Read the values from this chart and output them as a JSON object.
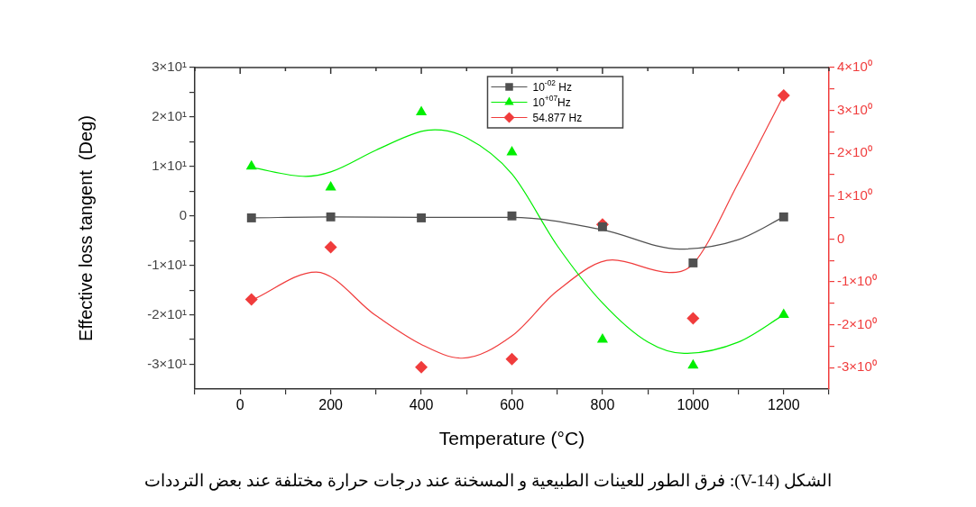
{
  "chart_data": {
    "type": "scatter",
    "xlabel": "Temperature (°C)",
    "ylabel": "Effective loss tangent  (Deg)",
    "annotations": [
      "الشكل (V-14): فرق الطور للعينات الطبيعية و المسخنة عند درجات حرارة مختلفة عند بعض الترددات"
    ],
    "xlim": [
      -100,
      1300
    ],
    "xticks": [
      {
        "value": -100,
        "label": null
      },
      0,
      {
        "value": 100,
        "label": null
      },
      200,
      {
        "value": 300,
        "label": null
      },
      400,
      {
        "value": 500,
        "label": null
      },
      600,
      {
        "value": 700,
        "label": null
      },
      800,
      {
        "value": 900,
        "label": null
      },
      1000,
      {
        "value": 1100,
        "label": null
      },
      1200,
      {
        "value": 1300,
        "label": null
      }
    ],
    "ylim": [
      -35,
      30
    ],
    "yticks": [
      {
        "value": -30,
        "label": "-3×10¹"
      },
      {
        "value": -25,
        "label": null
      },
      {
        "value": -20,
        "label": "-2×10¹"
      },
      {
        "value": -15,
        "label": null
      },
      {
        "value": -10,
        "label": "-1×10¹"
      },
      {
        "value": -5,
        "label": null
      },
      0,
      {
        "value": 5,
        "label": null
      },
      {
        "value": 10,
        "label": "1×10¹"
      },
      {
        "value": 15,
        "label": null
      },
      {
        "value": 20,
        "label": "2×10¹"
      },
      {
        "value": 25,
        "label": null
      },
      {
        "value": 30,
        "label": "3×10¹"
      }
    ],
    "y2lim": [
      -3.5,
      4
    ],
    "y2ticks": [
      {
        "value": -3,
        "label": "-3×10⁰"
      },
      {
        "value": -2.5,
        "label": null
      },
      {
        "value": -2,
        "label": "-2×10⁰"
      },
      {
        "value": -1.5,
        "label": null
      },
      {
        "value": -1,
        "label": "-1×10⁰"
      },
      {
        "value": -0.5,
        "label": null
      },
      0,
      {
        "value": 0.5,
        "label": null
      },
      {
        "value": 1,
        "label": "1×10⁰"
      },
      {
        "value": 1.5,
        "label": null
      },
      {
        "value": 2,
        "label": "2×10⁰"
      },
      {
        "value": 2.5,
        "label": null
      },
      {
        "value": 3,
        "label": "3×10⁰"
      },
      {
        "value": 3.5,
        "label": null
      },
      {
        "value": 4,
        "label": "4×10⁰"
      }
    ],
    "legend": "top",
    "series": [
      {
        "name": "10$^{-02}$ Hz",
        "marker": "square",
        "color": "#505050",
        "x": [
          25,
          200,
          400,
          600,
          800,
          1000,
          1200
        ],
        "values": [
          -0.4,
          -0.2,
          -0.4,
          0,
          -2.2,
          -9.5,
          -0.2
        ]
      },
      {
        "name": "10$^{+07}$Hz",
        "marker": "triangle",
        "color": "#00ee00",
        "x": [
          25,
          200,
          400,
          600,
          800,
          1000,
          1200
        ],
        "values": [
          10,
          5.8,
          21,
          12.9,
          -25,
          -30.2,
          -20
        ]
      },
      {
        "name": "54.877 Hz",
        "marker": "diamond",
        "color": "#f03c3c",
        "axis": "y2",
        "x": [
          25,
          200,
          400,
          600,
          800,
          1000,
          1200
        ],
        "values": [
          -1.41,
          -0.19,
          -2.99,
          -2.8,
          0.34,
          -1.85,
          3.35
        ]
      },
      {
        "type": "line",
        "marker": "none",
        "color": "#505050",
        "x": [
          25,
          200,
          400,
          600,
          800,
          970,
          1100,
          1200
        ],
        "values": [
          -0.4,
          -0.2,
          -0.3,
          -0.3,
          -2.8,
          -6.7,
          -4.8,
          -0.2
        ]
      },
      {
        "type": "line",
        "marker": "none",
        "color": "#00ee00",
        "x": [
          25,
          145,
          200,
          300,
          400,
          430,
          500,
          600,
          700,
          800,
          900,
          980,
          1100,
          1200
        ],
        "values": [
          9.8,
          8,
          8.9,
          13.3,
          17.1,
          17.4,
          15.8,
          8.5,
          -6,
          -17.6,
          -25.5,
          -27.8,
          -25.5,
          -20
        ]
      },
      {
        "type": "line",
        "marker": "none",
        "color": "#f03c3c",
        "axis": "y2",
        "x": [
          25,
          168,
          300,
          400,
          490,
          600,
          700,
          822,
          947,
          1000,
          1100,
          1200
        ],
        "values": [
          -1.43,
          -0.77,
          -1.79,
          -2.46,
          -2.78,
          -2.26,
          -1.21,
          -0.49,
          -0.78,
          -0.58,
          1.31,
          3.35
        ]
      }
    ]
  }
}
